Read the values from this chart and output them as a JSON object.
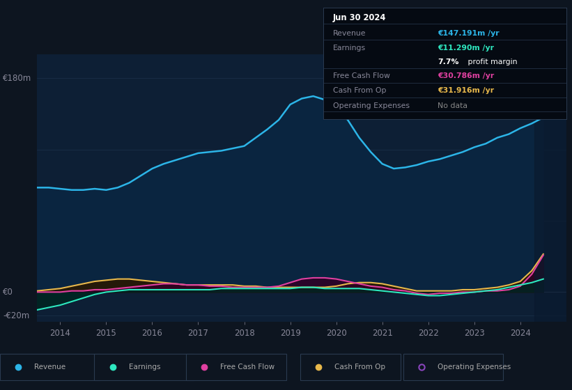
{
  "bg_color": "#0d1520",
  "plot_bg_color": "#0d1f35",
  "grid_color": "#1a2e48",
  "ylim": [
    -25,
    200
  ],
  "xlim": [
    2013.5,
    2025.0
  ],
  "x_ticks": [
    2014,
    2015,
    2016,
    2017,
    2018,
    2019,
    2020,
    2021,
    2022,
    2023,
    2024
  ],
  "y_gridlines": [
    -20,
    0,
    60,
    120,
    180
  ],
  "revenue": {
    "label": "Revenue",
    "color": "#2cb5e8",
    "fill_color": "#0a2540",
    "x": [
      2013.5,
      2013.75,
      2014.0,
      2014.25,
      2014.5,
      2014.75,
      2015.0,
      2015.25,
      2015.5,
      2015.75,
      2016.0,
      2016.25,
      2016.5,
      2016.75,
      2017.0,
      2017.25,
      2017.5,
      2017.75,
      2018.0,
      2018.25,
      2018.5,
      2018.75,
      2019.0,
      2019.25,
      2019.5,
      2019.75,
      2020.0,
      2020.25,
      2020.5,
      2020.75,
      2021.0,
      2021.25,
      2021.5,
      2021.75,
      2022.0,
      2022.25,
      2022.5,
      2022.75,
      2023.0,
      2023.25,
      2023.5,
      2023.75,
      2024.0,
      2024.25,
      2024.5
    ],
    "y": [
      88,
      88,
      87,
      86,
      86,
      87,
      86,
      88,
      92,
      98,
      104,
      108,
      111,
      114,
      117,
      118,
      119,
      121,
      123,
      130,
      137,
      145,
      158,
      163,
      165,
      162,
      155,
      145,
      130,
      118,
      108,
      104,
      105,
      107,
      110,
      112,
      115,
      118,
      122,
      125,
      130,
      133,
      138,
      142,
      147
    ]
  },
  "earnings": {
    "label": "Earnings",
    "color": "#2ee8c0",
    "x": [
      2013.5,
      2013.75,
      2014.0,
      2014.25,
      2014.5,
      2014.75,
      2015.0,
      2015.25,
      2015.5,
      2015.75,
      2016.0,
      2016.25,
      2016.5,
      2016.75,
      2017.0,
      2017.25,
      2017.5,
      2017.75,
      2018.0,
      2018.25,
      2018.5,
      2018.75,
      2019.0,
      2019.25,
      2019.5,
      2019.75,
      2020.0,
      2020.25,
      2020.5,
      2020.75,
      2021.0,
      2021.25,
      2021.5,
      2021.75,
      2022.0,
      2022.25,
      2022.5,
      2022.75,
      2023.0,
      2023.25,
      2023.5,
      2023.75,
      2024.0,
      2024.25,
      2024.5
    ],
    "y": [
      -15,
      -13,
      -11,
      -8,
      -5,
      -2,
      0,
      1,
      2,
      2,
      2,
      2,
      2,
      2,
      2,
      2,
      3,
      3,
      3,
      3,
      3,
      3,
      3,
      4,
      4,
      3,
      3,
      3,
      3,
      2,
      1,
      0,
      -1,
      -2,
      -3,
      -3,
      -2,
      -1,
      0,
      1,
      2,
      4,
      6,
      8,
      11
    ]
  },
  "free_cash_flow": {
    "label": "Free Cash Flow",
    "color": "#e040a0",
    "x": [
      2013.5,
      2013.75,
      2014.0,
      2014.25,
      2014.5,
      2014.75,
      2015.0,
      2015.25,
      2015.5,
      2015.75,
      2016.0,
      2016.25,
      2016.5,
      2016.75,
      2017.0,
      2017.25,
      2017.5,
      2017.75,
      2018.0,
      2018.25,
      2018.5,
      2018.75,
      2019.0,
      2019.25,
      2019.5,
      2019.75,
      2020.0,
      2020.25,
      2020.5,
      2020.75,
      2021.0,
      2021.25,
      2021.5,
      2021.75,
      2022.0,
      2022.25,
      2022.5,
      2022.75,
      2023.0,
      2023.25,
      2023.5,
      2023.75,
      2024.0,
      2024.25,
      2024.5
    ],
    "y": [
      0,
      0,
      0,
      1,
      1,
      2,
      2,
      3,
      4,
      5,
      6,
      7,
      7,
      6,
      6,
      5,
      5,
      4,
      4,
      4,
      4,
      5,
      8,
      11,
      12,
      12,
      11,
      9,
      7,
      5,
      4,
      2,
      1,
      -1,
      -2,
      -1,
      -1,
      0,
      0,
      1,
      1,
      2,
      5,
      15,
      31
    ]
  },
  "cash_from_op": {
    "label": "Cash From Op",
    "color": "#e8b84b",
    "x": [
      2013.5,
      2013.75,
      2014.0,
      2014.25,
      2014.5,
      2014.75,
      2015.0,
      2015.25,
      2015.5,
      2015.75,
      2016.0,
      2016.25,
      2016.5,
      2016.75,
      2017.0,
      2017.25,
      2017.5,
      2017.75,
      2018.0,
      2018.25,
      2018.5,
      2018.75,
      2019.0,
      2019.25,
      2019.5,
      2019.75,
      2020.0,
      2020.25,
      2020.5,
      2020.75,
      2021.0,
      2021.25,
      2021.5,
      2021.75,
      2022.0,
      2022.25,
      2022.5,
      2022.75,
      2023.0,
      2023.25,
      2023.5,
      2023.75,
      2024.0,
      2024.25,
      2024.5
    ],
    "y": [
      1,
      2,
      3,
      5,
      7,
      9,
      10,
      11,
      11,
      10,
      9,
      8,
      7,
      6,
      6,
      6,
      6,
      6,
      5,
      5,
      4,
      4,
      4,
      4,
      4,
      4,
      5,
      7,
      8,
      8,
      7,
      5,
      3,
      1,
      1,
      1,
      1,
      2,
      2,
      3,
      4,
      6,
      9,
      18,
      32
    ]
  },
  "operating_expenses": {
    "label": "Operating Expenses",
    "color": "#8844bb"
  },
  "info_box": {
    "date": "Jun 30 2024",
    "revenue_val": "€147.191m /yr",
    "earnings_val": "€11.290m /yr",
    "profit_margin": "7.7% profit margin",
    "fcf_val": "€30.786m /yr",
    "cash_op_val": "€31.916m /yr",
    "op_exp_val": "No data",
    "revenue_color": "#2cb5e8",
    "earnings_color": "#2ee8c0",
    "fcf_color": "#e040a0",
    "cash_op_color": "#e8b84b",
    "op_exp_color": "#888888",
    "profit_margin_bold": "7.7%",
    "box_bg": "#050a12",
    "box_border": "#2a3a50",
    "label_color": "#888899",
    "header_color": "#ffffff",
    "value_white": "#dddddd"
  },
  "legend": {
    "revenue_color": "#2cb5e8",
    "earnings_color": "#2ee8c0",
    "fcf_color": "#e040a0",
    "cash_op_color": "#e8b84b",
    "op_exp_color": "#8844bb",
    "border_color": "#2a3a50",
    "text_color": "#aaaaaa",
    "bg_color": "#0d1520"
  }
}
